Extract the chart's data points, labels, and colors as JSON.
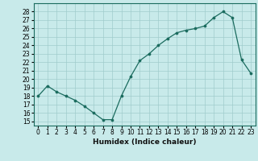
{
  "x": [
    0,
    1,
    2,
    3,
    4,
    5,
    6,
    7,
    8,
    9,
    10,
    11,
    12,
    13,
    14,
    15,
    16,
    17,
    18,
    19,
    20,
    21,
    22,
    23
  ],
  "y": [
    18.0,
    19.2,
    18.5,
    18.0,
    17.5,
    16.8,
    16.0,
    15.2,
    15.2,
    18.0,
    20.3,
    22.2,
    23.0,
    24.0,
    24.8,
    25.5,
    25.8,
    26.0,
    26.3,
    27.3,
    28.0,
    27.3,
    22.3,
    20.7
  ],
  "xlabel": "Humidex (Indice chaleur)",
  "ylim": [
    14.5,
    29.0
  ],
  "xlim": [
    -0.5,
    23.5
  ],
  "yticks": [
    15,
    16,
    17,
    18,
    19,
    20,
    21,
    22,
    23,
    24,
    25,
    26,
    27,
    28
  ],
  "xticks": [
    0,
    1,
    2,
    3,
    4,
    5,
    6,
    7,
    8,
    9,
    10,
    11,
    12,
    13,
    14,
    15,
    16,
    17,
    18,
    19,
    20,
    21,
    22,
    23
  ],
  "line_color": "#1a6b5e",
  "marker_color": "#1a6b5e",
  "bg_color": "#c8eaea",
  "grid_color": "#a0cccc",
  "tick_fontsize": 5.5,
  "xlabel_fontsize": 6.5
}
